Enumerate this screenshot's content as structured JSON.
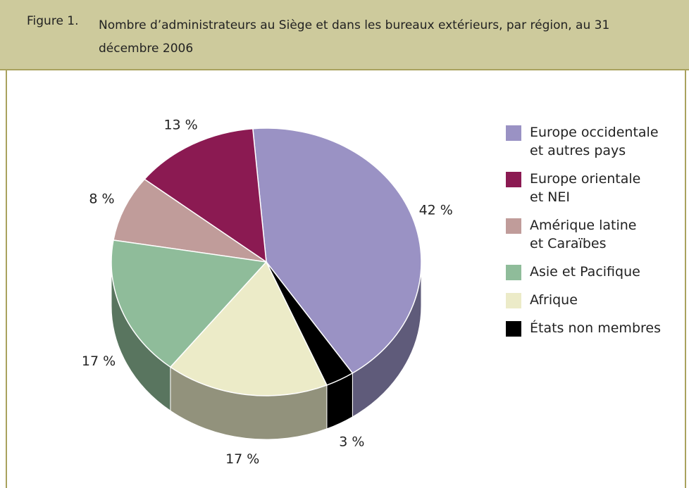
{
  "chart_data": {
    "type": "pie",
    "figure_label": "Figure 1.",
    "title": "Nombre d’administrateurs au Siège et dans les bureaux extérieurs, par région, au 31 décembre 2006",
    "series": [
      {
        "name": "Europe occidentale\net autres pays",
        "color": "#9a92c4",
        "values": [
          42
        ],
        "value_labels": [
          "42 %"
        ]
      },
      {
        "name": "Europe orientale\net NEI",
        "color": "#8b1a52",
        "values": [
          13
        ],
        "value_labels": [
          "13 %"
        ]
      },
      {
        "name": "Amérique latine\net Caraïbes",
        "color": "#c09c9a",
        "values": [
          8
        ],
        "value_labels": [
          "8 %"
        ]
      },
      {
        "name": "Asie et Pacifique",
        "color": "#8fbc9a",
        "values": [
          17
        ],
        "value_labels": [
          "17 %"
        ]
      },
      {
        "name": "Afrique",
        "color": "#ecebc8",
        "values": [
          17
        ],
        "value_labels": [
          "17 %"
        ]
      },
      {
        "name": "États non membres",
        "color": "#000000",
        "values": [
          3
        ],
        "value_labels": [
          "3 %"
        ]
      }
    ]
  }
}
